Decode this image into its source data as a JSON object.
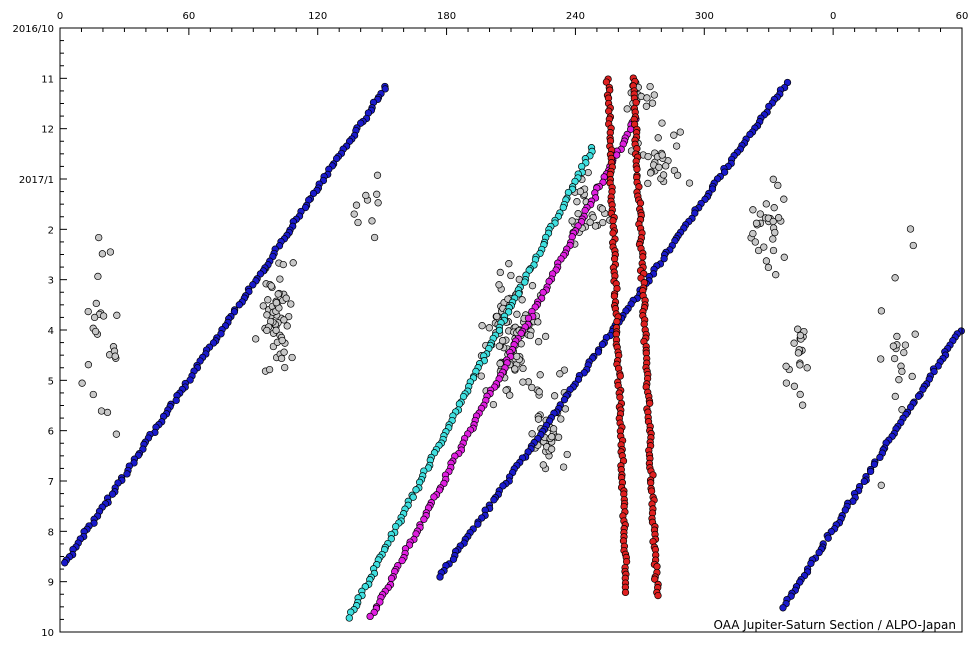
{
  "chart_data": {
    "type": "scatter",
    "title": "",
    "credit": "OAA Jupiter-Saturn Section / ALPO-Japan",
    "x_axis": {
      "label": "",
      "ticks": [
        "0",
        "60",
        "120",
        "180",
        "240",
        "300",
        "0",
        "60"
      ],
      "tick_values": [
        0,
        60,
        120,
        180,
        240,
        300,
        360,
        420
      ],
      "range": [
        0,
        420
      ]
    },
    "y_axis": {
      "label": "",
      "ticks": [
        "2016/10",
        "11",
        "12",
        "2017/1",
        "2",
        "3",
        "4",
        "5",
        "6",
        "7",
        "8",
        "9",
        "10"
      ],
      "tick_months": [
        0,
        1,
        2,
        3,
        4,
        5,
        6,
        7,
        8,
        9,
        10,
        11,
        12
      ],
      "range_months": [
        0,
        12
      ]
    },
    "grid": false,
    "colors": {
      "blue": "#1a1acc",
      "cyan": "#40e0e0",
      "magenta": "#e020e0",
      "red": "#e02020",
      "gray": "#c8c8c8",
      "outline": "#000000"
    },
    "series": [
      {
        "color": "blue",
        "marker": "circle",
        "segments": [
          {
            "start": [
              152,
              1.15
            ],
            "end": [
              2,
              10.65
            ]
          },
          {
            "start": [
              419,
              6.0
            ],
            "end": [
              337,
              11.5
            ]
          }
        ]
      },
      {
        "color": "blue",
        "marker": "circle",
        "segments": [
          {
            "start": [
              338,
              1.1
            ],
            "end": [
              177,
              10.9
            ]
          }
        ]
      },
      {
        "color": "cyan",
        "marker": "circle",
        "segments": [
          {
            "start": [
              248,
              2.4
            ],
            "end": [
              135,
              11.7
            ]
          }
        ]
      },
      {
        "color": "magenta",
        "marker": "circle",
        "segments": [
          {
            "start": [
              268,
              1.8
            ],
            "end": [
              145,
              11.7
            ]
          }
        ]
      },
      {
        "color": "red",
        "marker": "circle",
        "segments": [
          {
            "start": [
              255,
              1.0
            ],
            "end": [
              264,
              11.2
            ]
          },
          {
            "start": [
              267,
              1.0
            ],
            "end": [
              278,
              11.3
            ]
          }
        ]
      },
      {
        "color": "gray",
        "marker": "circle",
        "clusters": [
          {
            "center": [
              100,
              5.7
            ],
            "spread": [
              14,
              1.5
            ],
            "n": 60
          },
          {
            "center": [
              210,
              6.2
            ],
            "spread": [
              18,
              1.6
            ],
            "n": 110
          },
          {
            "center": [
              228,
              8.0
            ],
            "spread": [
              14,
              1.4
            ],
            "n": 40
          },
          {
            "center": [
              245,
              3.6
            ],
            "spread": [
              14,
              1.2
            ],
            "n": 30
          },
          {
            "center": [
              280,
              2.6
            ],
            "spread": [
              16,
              1.0
            ],
            "n": 30
          },
          {
            "center": [
              330,
              4.0
            ],
            "spread": [
              12,
              1.4
            ],
            "n": 30
          },
          {
            "center": [
              343,
              6.6
            ],
            "spread": [
              8,
              1.2
            ],
            "n": 20
          },
          {
            "center": [
              145,
              3.3
            ],
            "spread": [
              10,
              1.2
            ],
            "n": 10
          },
          {
            "center": [
              20,
              6.0
            ],
            "spread": [
              12,
              3.0
            ],
            "n": 25
          },
          {
            "center": [
              390,
              6.5
            ],
            "spread": [
              15,
              3.0
            ],
            "n": 20
          },
          {
            "center": [
              270,
              1.3
            ],
            "spread": [
              12,
              0.5
            ],
            "n": 15
          }
        ]
      }
    ]
  }
}
